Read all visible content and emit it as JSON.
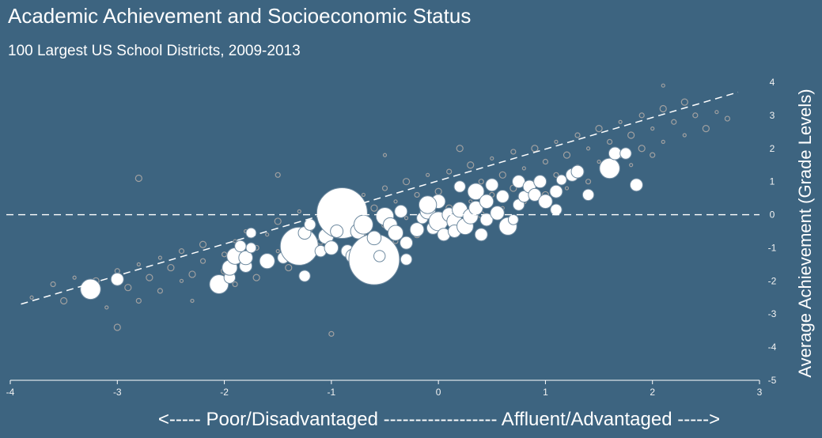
{
  "chart_data": {
    "type": "scatter",
    "title": "Academic Achievement and Socioeconomic Status",
    "subtitle": "100 Largest US School Districts, 2009-2013",
    "xlabel": "<----- Poor/Disadvantaged ------------------ Affluent/Advantaged ----->",
    "ylabel": "Average Achievement (Grade Levels)",
    "xlim": [
      -4,
      3
    ],
    "ylim": [
      -5,
      4
    ],
    "xticks": [
      "-4",
      "-3",
      "-2",
      "-1",
      "0",
      "1",
      "2",
      "3"
    ],
    "yticks": [
      "4",
      "3",
      "2",
      "1",
      "0",
      "-1",
      "-2",
      "-3",
      "-4",
      "-5"
    ],
    "grid": false,
    "reference_line_y": 0,
    "trend_line": {
      "x": [
        -3.9,
        2.8
      ],
      "y": [
        -2.7,
        3.7
      ]
    },
    "colors": {
      "background": "#3d6480",
      "background_points": "#a0a0a0",
      "highlight_points": "#ffffff"
    },
    "series": [
      {
        "role": "all districts (background)",
        "points": [
          [
            -3.8,
            -2.5
          ],
          [
            -3.6,
            -2.1
          ],
          [
            -3.5,
            -2.6
          ],
          [
            -3.4,
            -1.9
          ],
          [
            -3.3,
            -2.4
          ],
          [
            -3.2,
            -2.0
          ],
          [
            -3.1,
            -2.8
          ],
          [
            -3.0,
            -1.7
          ],
          [
            -2.9,
            -2.2
          ],
          [
            -2.8,
            -1.5
          ],
          [
            -2.8,
            -2.6
          ],
          [
            -2.7,
            -1.9
          ],
          [
            -2.6,
            -1.3
          ],
          [
            -2.6,
            -2.3
          ],
          [
            -2.5,
            -1.6
          ],
          [
            -2.4,
            -2.0
          ],
          [
            -2.4,
            -1.1
          ],
          [
            -2.3,
            -1.8
          ],
          [
            -2.3,
            -2.6
          ],
          [
            -2.2,
            -1.4
          ],
          [
            -2.2,
            -0.9
          ],
          [
            -2.1,
            -2.2
          ],
          [
            -2.0,
            -1.2
          ],
          [
            -2.0,
            -1.7
          ],
          [
            -1.9,
            -0.8
          ],
          [
            -1.9,
            -2.1
          ],
          [
            -1.8,
            -1.5
          ],
          [
            -1.8,
            -0.5
          ],
          [
            -1.7,
            -1.0
          ],
          [
            -1.7,
            -1.9
          ],
          [
            -1.6,
            -0.6
          ],
          [
            -1.6,
            -1.4
          ],
          [
            -1.5,
            -0.2
          ],
          [
            -1.5,
            -1.1
          ],
          [
            -1.4,
            -0.7
          ],
          [
            -1.4,
            -1.6
          ],
          [
            -1.3,
            0.1
          ],
          [
            -1.3,
            -0.9
          ],
          [
            -1.2,
            -0.4
          ],
          [
            -1.2,
            -1.3
          ],
          [
            -1.1,
            0.3
          ],
          [
            -1.1,
            -0.8
          ],
          [
            -1.0,
            -0.2
          ],
          [
            -1.0,
            -1.0
          ],
          [
            -0.9,
            0.5
          ],
          [
            -0.9,
            -0.5
          ],
          [
            -0.8,
            -0.1
          ],
          [
            -0.8,
            -1.2
          ],
          [
            -0.7,
            0.6
          ],
          [
            -0.7,
            -0.6
          ],
          [
            -0.6,
            0.2
          ],
          [
            -0.6,
            -0.9
          ],
          [
            -0.5,
            0.8
          ],
          [
            -0.5,
            -0.3
          ],
          [
            -0.4,
            0.4
          ],
          [
            -0.4,
            -0.8
          ],
          [
            -0.3,
            1.0
          ],
          [
            -0.3,
            -0.1
          ],
          [
            -0.2,
            0.6
          ],
          [
            -0.2,
            -0.6
          ],
          [
            -0.1,
            1.2
          ],
          [
            -0.1,
            0.1
          ],
          [
            0.0,
            0.7
          ],
          [
            0.0,
            -0.4
          ],
          [
            0.1,
            1.3
          ],
          [
            0.1,
            0.2
          ],
          [
            0.2,
            0.9
          ],
          [
            0.2,
            -0.2
          ],
          [
            0.3,
            1.5
          ],
          [
            0.3,
            0.4
          ],
          [
            0.4,
            1.0
          ],
          [
            0.4,
            0.0
          ],
          [
            0.5,
            1.7
          ],
          [
            0.5,
            0.6
          ],
          [
            0.6,
            1.2
          ],
          [
            0.6,
            0.2
          ],
          [
            0.7,
            1.9
          ],
          [
            0.7,
            0.8
          ],
          [
            0.8,
            1.4
          ],
          [
            0.8,
            0.4
          ],
          [
            0.9,
            2.0
          ],
          [
            0.9,
            1.0
          ],
          [
            1.0,
            1.6
          ],
          [
            1.0,
            0.6
          ],
          [
            1.1,
            2.2
          ],
          [
            1.1,
            1.2
          ],
          [
            1.2,
            1.8
          ],
          [
            1.2,
            0.8
          ],
          [
            1.3,
            2.4
          ],
          [
            1.3,
            1.4
          ],
          [
            1.4,
            2.0
          ],
          [
            1.4,
            1.0
          ],
          [
            1.5,
            2.6
          ],
          [
            1.5,
            1.6
          ],
          [
            1.6,
            2.2
          ],
          [
            1.6,
            1.2
          ],
          [
            1.7,
            2.8
          ],
          [
            1.7,
            1.8
          ],
          [
            1.8,
            2.4
          ],
          [
            1.8,
            1.5
          ],
          [
            1.9,
            3.0
          ],
          [
            1.9,
            2.0
          ],
          [
            2.0,
            2.6
          ],
          [
            2.0,
            1.8
          ],
          [
            2.1,
            3.2
          ],
          [
            2.1,
            2.2
          ],
          [
            2.2,
            2.8
          ],
          [
            2.3,
            3.4
          ],
          [
            2.3,
            2.4
          ],
          [
            2.4,
            3.0
          ],
          [
            2.5,
            2.6
          ],
          [
            2.6,
            3.1
          ],
          [
            2.7,
            2.9
          ],
          [
            -3.0,
            -3.4
          ],
          [
            -0.5,
            1.8
          ],
          [
            -1.5,
            1.2
          ],
          [
            -2.8,
            1.1
          ],
          [
            2.1,
            3.9
          ],
          [
            -1.0,
            -3.6
          ],
          [
            0.2,
            2.0
          ]
        ]
      },
      {
        "role": "100 largest districts (highlighted)",
        "points": [
          [
            -3.25,
            -2.25,
            1.6
          ],
          [
            -3.0,
            -1.95,
            1.0
          ],
          [
            -2.05,
            -2.1,
            1.5
          ],
          [
            -1.95,
            -1.9,
            0.9
          ],
          [
            -1.95,
            -1.6,
            1.2
          ],
          [
            -1.8,
            -1.55,
            1.0
          ],
          [
            -1.9,
            -1.25,
            1.3
          ],
          [
            -1.8,
            -1.3,
            1.1
          ],
          [
            -1.85,
            -0.95,
            0.9
          ],
          [
            -1.75,
            -0.55,
            0.8
          ],
          [
            -1.75,
            -1.0,
            0.8
          ],
          [
            -1.6,
            -1.4,
            1.2
          ],
          [
            -1.45,
            -1.3,
            0.9
          ],
          [
            -1.3,
            -0.95,
            3.0
          ],
          [
            -1.25,
            -0.55,
            1.0
          ],
          [
            -1.25,
            -1.85,
            0.9
          ],
          [
            -1.2,
            -0.3,
            0.9
          ],
          [
            -1.1,
            -1.1,
            0.9
          ],
          [
            -1.05,
            -0.65,
            1.2
          ],
          [
            -1.0,
            -1.0,
            1.1
          ],
          [
            -0.9,
            0.05,
            4.0
          ],
          [
            -0.95,
            -0.5,
            1.0
          ],
          [
            -0.85,
            -1.1,
            1.0
          ],
          [
            -0.8,
            -1.25,
            1.1
          ],
          [
            -0.75,
            -0.5,
            1.2
          ],
          [
            -0.7,
            -0.3,
            1.5
          ],
          [
            -0.65,
            -0.9,
            1.0
          ],
          [
            -0.6,
            -1.35,
            4.0
          ],
          [
            -0.6,
            -0.7,
            1.1
          ],
          [
            -0.55,
            -1.25,
            0.9
          ],
          [
            -0.5,
            -0.05,
            1.4
          ],
          [
            -0.45,
            -0.3,
            1.1
          ],
          [
            -0.4,
            -0.55,
            1.2
          ],
          [
            -0.35,
            0.1,
            1.0
          ],
          [
            -0.3,
            -0.85,
            1.0
          ],
          [
            -0.3,
            -1.35,
            0.9
          ],
          [
            -0.2,
            -0.45,
            1.1
          ],
          [
            -0.15,
            -0.1,
            0.9
          ],
          [
            -0.1,
            0.1,
            1.2
          ],
          [
            -0.05,
            -0.4,
            1.0
          ],
          [
            0.0,
            -0.2,
            1.5
          ],
          [
            0.0,
            0.4,
            1.1
          ],
          [
            -0.1,
            0.3,
            1.4
          ],
          [
            0.05,
            -0.6,
            1.0
          ],
          [
            0.1,
            0.0,
            1.1
          ],
          [
            0.15,
            -0.2,
            1.2
          ],
          [
            0.15,
            -0.5,
            1.0
          ],
          [
            0.2,
            0.15,
            1.2
          ],
          [
            0.2,
            0.85,
            0.9
          ],
          [
            0.25,
            -0.35,
            1.3
          ],
          [
            0.3,
            -0.05,
            1.2
          ],
          [
            0.35,
            0.2,
            1.1
          ],
          [
            0.35,
            0.7,
            1.3
          ],
          [
            0.4,
            -0.6,
            1.0
          ],
          [
            0.45,
            -0.15,
            1.0
          ],
          [
            0.45,
            0.4,
            1.1
          ],
          [
            0.5,
            0.9,
            1.0
          ],
          [
            0.55,
            0.05,
            1.1
          ],
          [
            0.6,
            0.55,
            1.0
          ],
          [
            0.65,
            -0.35,
            1.4
          ],
          [
            0.7,
            -0.15,
            0.8
          ],
          [
            0.75,
            0.3,
            0.9
          ],
          [
            0.75,
            1.0,
            1.0
          ],
          [
            0.8,
            0.55,
            0.9
          ],
          [
            0.85,
            0.85,
            1.0
          ],
          [
            0.9,
            0.6,
            1.0
          ],
          [
            0.95,
            1.0,
            1.0
          ],
          [
            1.0,
            0.4,
            1.1
          ],
          [
            1.1,
            0.15,
            0.9
          ],
          [
            1.1,
            0.7,
            1.0
          ],
          [
            1.15,
            1.05,
            0.8
          ],
          [
            1.25,
            1.2,
            1.0
          ],
          [
            1.3,
            1.3,
            1.0
          ],
          [
            1.4,
            0.6,
            0.9
          ],
          [
            1.6,
            1.4,
            1.6
          ],
          [
            1.65,
            1.85,
            1.0
          ],
          [
            1.75,
            1.85,
            0.9
          ],
          [
            1.85,
            0.9,
            1.0
          ]
        ]
      }
    ]
  }
}
